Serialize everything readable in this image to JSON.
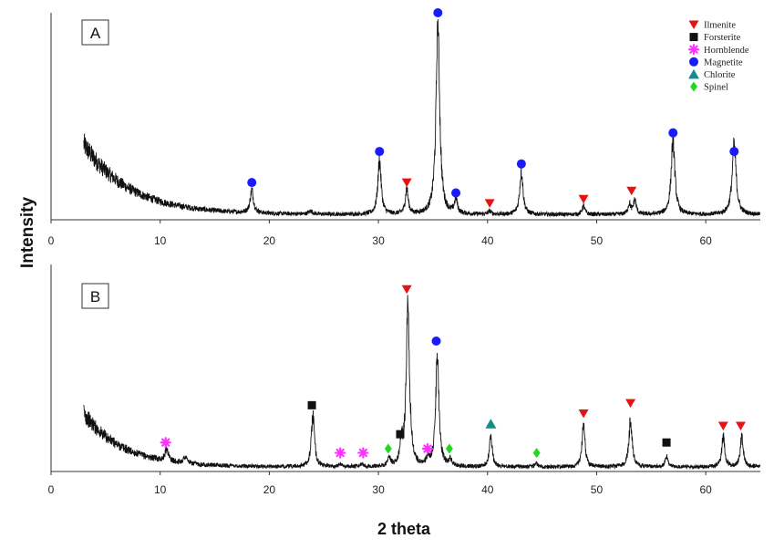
{
  "chart_data": {
    "type": "line",
    "xlabel": "2 theta",
    "ylabel": "Intensity",
    "xlim": [
      0,
      65
    ],
    "x_ticks": [
      "0",
      "10",
      "20",
      "30",
      "40",
      "50",
      "60"
    ],
    "x_tick_values": [
      0,
      10,
      20,
      30,
      40,
      50,
      60
    ],
    "legend": {
      "placement": "top-right",
      "entries": [
        {
          "name": "Ilmenite",
          "marker": "triangle-down",
          "color": "#e41414"
        },
        {
          "name": "Forsterite",
          "marker": "square",
          "color": "#111111"
        },
        {
          "name": "Hornblende",
          "marker": "asterisk",
          "color": "#ff33ff"
        },
        {
          "name": "Magnetite",
          "marker": "circle",
          "color": "#1a1aff"
        },
        {
          "name": "Chlorite",
          "marker": "triangle-up",
          "color": "#138c8c"
        },
        {
          "name": "Spinel",
          "marker": "diamond",
          "color": "#22d822"
        }
      ]
    },
    "panels": [
      {
        "label": "A",
        "ylim": [
          0,
          100
        ],
        "start": 3,
        "background": {
          "amp": 34,
          "decay": 4.2,
          "base": 2.5
        },
        "peaks": [
          {
            "x": 18.4,
            "y": 11,
            "w": 0.18
          },
          {
            "x": 23.8,
            "y": 1.5,
            "w": 0.2
          },
          {
            "x": 30.1,
            "y": 26,
            "w": 0.18
          },
          {
            "x": 32.6,
            "y": 12,
            "w": 0.16
          },
          {
            "x": 35.45,
            "y": 92,
            "w": 0.2
          },
          {
            "x": 37.1,
            "y": 7,
            "w": 0.16
          },
          {
            "x": 40.2,
            "y": 1.5,
            "w": 0.16
          },
          {
            "x": 43.1,
            "y": 21,
            "w": 0.18
          },
          {
            "x": 48.8,
            "y": 4,
            "w": 0.16
          },
          {
            "x": 53.0,
            "y": 5,
            "w": 0.15
          },
          {
            "x": 53.5,
            "y": 7,
            "w": 0.15
          },
          {
            "x": 57.0,
            "y": 36,
            "w": 0.2
          },
          {
            "x": 62.6,
            "y": 33,
            "w": 0.22
          }
        ],
        "markers": [
          {
            "phase": "Magnetite",
            "x": 18.4,
            "y": 18
          },
          {
            "phase": "Magnetite",
            "x": 30.1,
            "y": 33
          },
          {
            "phase": "Ilmenite",
            "x": 32.6,
            "y": 18
          },
          {
            "phase": "Magnetite",
            "x": 35.45,
            "y": 100
          },
          {
            "phase": "Magnetite",
            "x": 37.1,
            "y": 13
          },
          {
            "phase": "Ilmenite",
            "x": 40.2,
            "y": 8
          },
          {
            "phase": "Magnetite",
            "x": 43.1,
            "y": 27
          },
          {
            "phase": "Ilmenite",
            "x": 48.8,
            "y": 10
          },
          {
            "phase": "Ilmenite",
            "x": 53.2,
            "y": 14
          },
          {
            "phase": "Magnetite",
            "x": 57.0,
            "y": 42
          },
          {
            "phase": "Magnetite",
            "x": 62.6,
            "y": 33
          }
        ]
      },
      {
        "label": "B",
        "ylim": [
          0,
          100
        ],
        "start": 3,
        "background": {
          "amp": 26,
          "decay": 3.5,
          "base": 2.2
        },
        "peaks": [
          {
            "x": 10.6,
            "y": 6,
            "w": 0.18
          },
          {
            "x": 12.3,
            "y": 3,
            "w": 0.2
          },
          {
            "x": 24.0,
            "y": 25,
            "w": 0.17
          },
          {
            "x": 26.5,
            "y": 1.5,
            "w": 0.15
          },
          {
            "x": 28.5,
            "y": 1.5,
            "w": 0.15
          },
          {
            "x": 31.0,
            "y": 4,
            "w": 0.15
          },
          {
            "x": 32.1,
            "y": 10,
            "w": 0.15
          },
          {
            "x": 32.7,
            "y": 80,
            "w": 0.18
          },
          {
            "x": 34.5,
            "y": 3,
            "w": 0.15
          },
          {
            "x": 35.4,
            "y": 55,
            "w": 0.18
          },
          {
            "x": 36.6,
            "y": 3,
            "w": 0.15
          },
          {
            "x": 40.3,
            "y": 15,
            "w": 0.16
          },
          {
            "x": 44.5,
            "y": 1.5,
            "w": 0.15
          },
          {
            "x": 48.8,
            "y": 20,
            "w": 0.16
          },
          {
            "x": 53.1,
            "y": 23,
            "w": 0.17
          },
          {
            "x": 56.4,
            "y": 5,
            "w": 0.15
          },
          {
            "x": 61.6,
            "y": 15,
            "w": 0.16
          },
          {
            "x": 63.3,
            "y": 15,
            "w": 0.16
          }
        ],
        "markers": [
          {
            "phase": "Hornblende",
            "x": 10.5,
            "y": 14
          },
          {
            "phase": "Forsterite",
            "x": 23.9,
            "y": 32
          },
          {
            "phase": "Hornblende",
            "x": 26.5,
            "y": 9
          },
          {
            "phase": "Hornblende",
            "x": 28.6,
            "y": 9
          },
          {
            "phase": "Spinel",
            "x": 30.9,
            "y": 11
          },
          {
            "phase": "Forsterite",
            "x": 32.0,
            "y": 18
          },
          {
            "phase": "Ilmenite",
            "x": 32.6,
            "y": 88
          },
          {
            "phase": "Hornblende",
            "x": 34.5,
            "y": 11
          },
          {
            "phase": "Magnetite",
            "x": 35.3,
            "y": 63
          },
          {
            "phase": "Spinel",
            "x": 36.5,
            "y": 11
          },
          {
            "phase": "Chlorite",
            "x": 40.3,
            "y": 23
          },
          {
            "phase": "Spinel",
            "x": 44.5,
            "y": 9
          },
          {
            "phase": "Ilmenite",
            "x": 48.8,
            "y": 28
          },
          {
            "phase": "Ilmenite",
            "x": 53.1,
            "y": 33
          },
          {
            "phase": "Forsterite",
            "x": 56.4,
            "y": 14
          },
          {
            "phase": "Ilmenite",
            "x": 61.6,
            "y": 22
          },
          {
            "phase": "Ilmenite",
            "x": 63.2,
            "y": 22
          }
        ]
      }
    ]
  }
}
